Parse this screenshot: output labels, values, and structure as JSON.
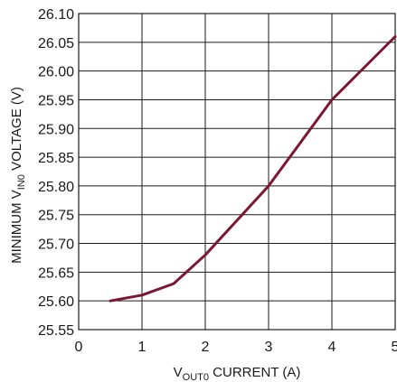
{
  "chart_data": {
    "type": "line",
    "xlabel": {
      "main": "V",
      "sub": "OUT0",
      "rest": " CURRENT (A)"
    },
    "ylabel": {
      "pre": "MINIMUM V",
      "sub": "IN0",
      "rest": " VOLTAGE (V)"
    },
    "xlim": [
      0,
      5
    ],
    "ylim": [
      25.55,
      26.1
    ],
    "xticks": [
      0,
      1,
      2,
      3,
      4,
      5
    ],
    "yticks": [
      25.55,
      25.6,
      25.65,
      25.7,
      25.75,
      25.8,
      25.85,
      25.9,
      25.95,
      26.0,
      26.05,
      26.1
    ],
    "ytick_labels": [
      "25.55",
      "25.60",
      "25.65",
      "25.70",
      "25.75",
      "25.80",
      "25.85",
      "25.90",
      "25.95",
      "26.00",
      "26.05",
      "26.10"
    ],
    "grid": true,
    "series": [
      {
        "color": "#7b1730",
        "x": [
          0.5,
          1.0,
          1.5,
          2.0,
          2.5,
          3.0,
          3.5,
          4.0,
          4.5,
          5.0
        ],
        "y": [
          25.6,
          25.61,
          25.63,
          25.68,
          25.74,
          25.8,
          25.875,
          25.95,
          26.005,
          26.06
        ]
      }
    ]
  }
}
